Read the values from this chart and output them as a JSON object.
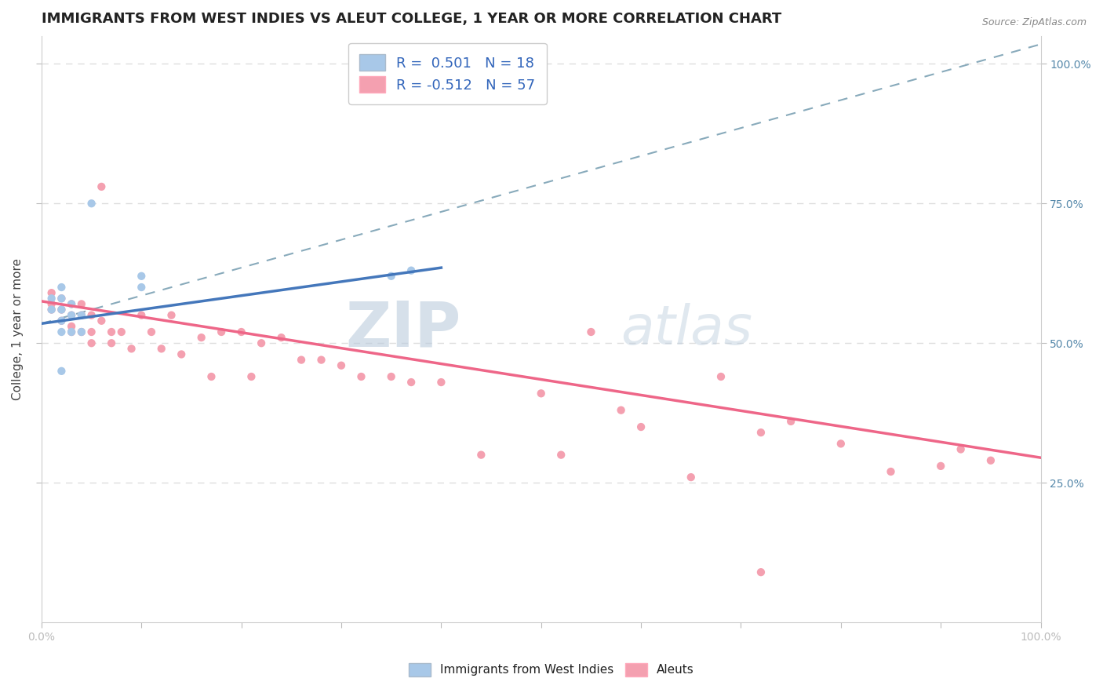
{
  "title": "IMMIGRANTS FROM WEST INDIES VS ALEUT COLLEGE, 1 YEAR OR MORE CORRELATION CHART",
  "source_text": "Source: ZipAtlas.com",
  "ylabel": "College, 1 year or more",
  "xlim": [
    0.0,
    1.0
  ],
  "ylim": [
    0.0,
    1.05
  ],
  "legend_r1": "R =  0.501",
  "legend_n1": "N = 18",
  "legend_r2": "R = -0.512",
  "legend_n2": "N = 57",
  "blue_dot_color": "#A8C8E8",
  "pink_dot_color": "#F4A0B0",
  "blue_line_color": "#4477BB",
  "pink_line_color": "#EE6688",
  "dashed_line_color": "#88AABB",
  "watermark": "ZIPatlas",
  "watermark_color": "#C8D8E8",
  "blue_points_x": [
    0.01,
    0.01,
    0.02,
    0.02,
    0.02,
    0.02,
    0.02,
    0.02,
    0.03,
    0.03,
    0.03,
    0.04,
    0.04,
    0.05,
    0.1,
    0.1,
    0.35,
    0.37
  ],
  "blue_points_y": [
    0.56,
    0.58,
    0.52,
    0.54,
    0.56,
    0.58,
    0.6,
    0.45,
    0.52,
    0.55,
    0.57,
    0.52,
    0.55,
    0.75,
    0.6,
    0.62,
    0.62,
    0.63
  ],
  "pink_points_x": [
    0.01,
    0.01,
    0.01,
    0.02,
    0.02,
    0.02,
    0.03,
    0.03,
    0.03,
    0.03,
    0.04,
    0.04,
    0.04,
    0.05,
    0.05,
    0.05,
    0.06,
    0.06,
    0.07,
    0.07,
    0.08,
    0.09,
    0.1,
    0.11,
    0.12,
    0.13,
    0.14,
    0.16,
    0.17,
    0.18,
    0.2,
    0.21,
    0.22,
    0.24,
    0.26,
    0.28,
    0.3,
    0.32,
    0.35,
    0.37,
    0.4,
    0.44,
    0.5,
    0.52,
    0.55,
    0.58,
    0.6,
    0.65,
    0.68,
    0.72,
    0.75,
    0.8,
    0.85,
    0.9,
    0.92,
    0.95,
    0.72
  ],
  "pink_points_y": [
    0.57,
    0.59,
    0.56,
    0.58,
    0.56,
    0.54,
    0.57,
    0.55,
    0.53,
    0.52,
    0.57,
    0.55,
    0.52,
    0.55,
    0.52,
    0.5,
    0.78,
    0.54,
    0.52,
    0.5,
    0.52,
    0.49,
    0.55,
    0.52,
    0.49,
    0.55,
    0.48,
    0.51,
    0.44,
    0.52,
    0.52,
    0.44,
    0.5,
    0.51,
    0.47,
    0.47,
    0.46,
    0.44,
    0.44,
    0.43,
    0.43,
    0.3,
    0.41,
    0.3,
    0.52,
    0.38,
    0.35,
    0.26,
    0.44,
    0.34,
    0.36,
    0.32,
    0.27,
    0.28,
    0.31,
    0.29,
    0.09
  ],
  "blue_trend_x0": 0.0,
  "blue_trend_x1": 0.4,
  "blue_trend_y0": 0.535,
  "blue_trend_y1": 0.635,
  "pink_trend_x0": 0.0,
  "pink_trend_x1": 1.0,
  "pink_trend_y0": 0.575,
  "pink_trend_y1": 0.295,
  "dash_trend_x0": 0.0,
  "dash_trend_x1": 1.0,
  "dash_trend_y0": 0.535,
  "dash_trend_y1": 1.035,
  "grid_color": "#DDDDDD",
  "title_fontsize": 13,
  "ylabel_fontsize": 11,
  "tick_fontsize": 10,
  "legend_fontsize": 13
}
